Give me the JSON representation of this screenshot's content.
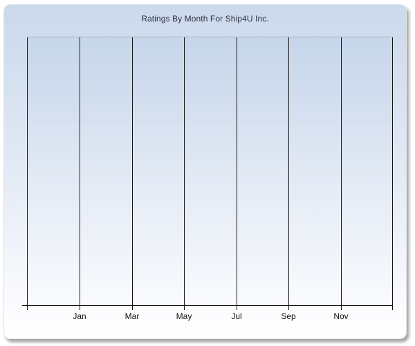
{
  "chart_data": {
    "type": "line",
    "title": "Ratings By Month For Ship4U Inc.",
    "xlabel": "",
    "ylabel": "",
    "x_tick_labels": [
      "Jan",
      "Mar",
      "May",
      "Jul",
      "Sep",
      "Nov"
    ],
    "series": [],
    "plot_empty": true,
    "legend": {
      "visible": false
    },
    "grid": {
      "vertical": true,
      "horizontal": false
    },
    "y_tick_labels": []
  },
  "colors": {
    "panel_gradient_top": "#cbd9ec",
    "panel_gradient_bottom": "#ffffff",
    "gridline": "#151515",
    "axis_line": "#151515",
    "plot_top_border": "#a7afbc",
    "title_text": "#2e2e42",
    "tick_label_text": "#111111",
    "shadow": "#8f8f8f"
  }
}
